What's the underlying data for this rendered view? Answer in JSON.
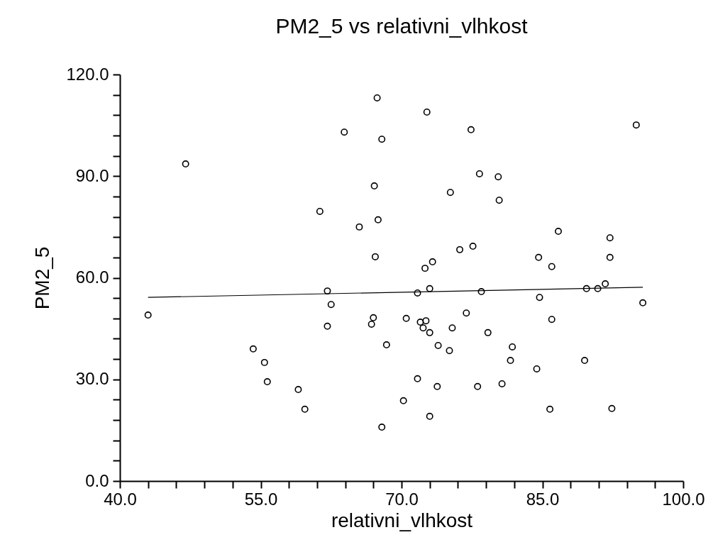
{
  "chart_data": {
    "type": "scatter",
    "title": "PM2_5 vs relativni_vlhkost",
    "xlabel": "relativni_vlhkost",
    "ylabel": "PM2_5",
    "xlim": [
      40,
      100
    ],
    "ylim": [
      0,
      120
    ],
    "xticks": [
      {
        "value": 40,
        "label": "40.0"
      },
      {
        "value": 43,
        "label": null
      },
      {
        "value": 46,
        "label": null
      },
      {
        "value": 49,
        "label": null
      },
      {
        "value": 52,
        "label": null
      },
      {
        "value": 55,
        "label": "55.0"
      },
      {
        "value": 58,
        "label": null
      },
      {
        "value": 61,
        "label": null
      },
      {
        "value": 64,
        "label": null
      },
      {
        "value": 67,
        "label": null
      },
      {
        "value": 70,
        "label": "70.0"
      },
      {
        "value": 73,
        "label": null
      },
      {
        "value": 76,
        "label": null
      },
      {
        "value": 79,
        "label": null
      },
      {
        "value": 82,
        "label": null
      },
      {
        "value": 85,
        "label": "85.0"
      },
      {
        "value": 88,
        "label": null
      },
      {
        "value": 91,
        "label": null
      },
      {
        "value": 94,
        "label": null
      },
      {
        "value": 97,
        "label": null
      },
      {
        "value": 100,
        "label": "100.0"
      }
    ],
    "yticks": [
      {
        "value": 0,
        "label": "0.0"
      },
      {
        "value": 6,
        "label": null
      },
      {
        "value": 12,
        "label": null
      },
      {
        "value": 18,
        "label": null
      },
      {
        "value": 24,
        "label": null
      },
      {
        "value": 30,
        "label": "30.0"
      },
      {
        "value": 36,
        "label": null
      },
      {
        "value": 42,
        "label": null
      },
      {
        "value": 48,
        "label": null
      },
      {
        "value": 54,
        "label": null
      },
      {
        "value": 60,
        "label": "60.0"
      },
      {
        "value": 66,
        "label": null
      },
      {
        "value": 72,
        "label": null
      },
      {
        "value": 78,
        "label": null
      },
      {
        "value": 84,
        "label": null
      },
      {
        "value": 90,
        "label": "90.0"
      },
      {
        "value": 96,
        "label": null
      },
      {
        "value": 102,
        "label": null
      },
      {
        "value": 108,
        "label": null
      },
      {
        "value": 114,
        "label": null
      },
      {
        "value": 120,
        "label": "120.0"
      }
    ],
    "grid": false,
    "series": [
      {
        "marker": "circle",
        "color": "#000000",
        "x": [
          43.0,
          47.0,
          61.3,
          63.9,
          65.5,
          67.1,
          67.4,
          67.5,
          67.9,
          67.2,
          62.1,
          62.5,
          62.1,
          54.2,
          55.4,
          55.7,
          59.0,
          59.7,
          67.0,
          66.8,
          68.4,
          67.9,
          70.5,
          70.2,
          71.7,
          73.0,
          78.5,
          84.7,
          89.7,
          90.9,
          91.7,
          95.7,
          72.0,
          72.6,
          72.3,
          73.0,
          76.9,
          75.4,
          79.2,
          86.0,
          73.9,
          75.1,
          81.8,
          81.6,
          84.4,
          89.5,
          71.7,
          73.8,
          78.1,
          80.7,
          73.0,
          85.8,
          92.4,
          72.7,
          77.4,
          95.0,
          78.3,
          80.3,
          75.2,
          80.4,
          86.7,
          92.2,
          92.2,
          84.6,
          86.0,
          76.2,
          77.6,
          73.3,
          72.5
        ],
        "values": [
          49.0,
          93.6,
          79.6,
          103.0,
          75.0,
          87.1,
          113.1,
          77.1,
          100.9,
          66.2,
          56.1,
          52.1,
          45.7,
          39.0,
          35.0,
          29.3,
          27.0,
          21.2,
          48.2,
          46.3,
          40.2,
          15.9,
          48.0,
          23.7,
          55.5,
          56.8,
          55.9,
          54.2,
          56.8,
          56.8,
          58.2,
          52.6,
          46.9,
          47.3,
          45.2,
          43.8,
          49.6,
          45.2,
          43.8,
          47.7,
          40.0,
          38.5,
          39.6,
          35.6,
          33.1,
          35.6,
          30.2,
          27.9,
          27.9,
          28.7,
          19.1,
          21.2,
          21.4,
          108.9,
          103.7,
          105.1,
          90.7,
          89.8,
          85.2,
          82.9,
          73.7,
          71.8,
          66.0,
          66.0,
          63.3,
          68.3,
          69.3,
          64.7,
          62.8
        ]
      },
      {
        "type": "line",
        "marker": "none",
        "color": "#000000",
        "line_style": "solid",
        "x": [
          43.0,
          95.7
        ],
        "values": [
          54.2,
          57.2
        ]
      }
    ]
  }
}
